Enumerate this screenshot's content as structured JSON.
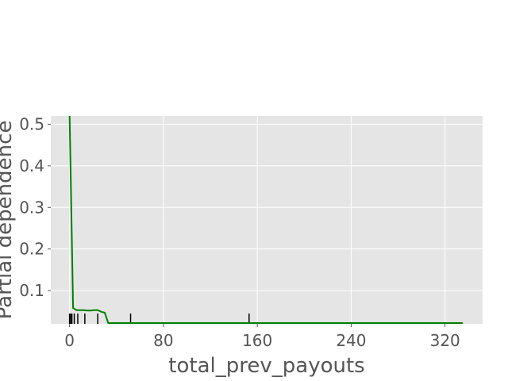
{
  "chart_data": {
    "type": "line",
    "title": "",
    "xlabel": "total_prev_payouts",
    "ylabel": "Partial dependence",
    "xlim": [
      -16,
      352
    ],
    "ylim": [
      0.02,
      0.52
    ],
    "xticks": [
      0,
      80,
      160,
      240,
      320
    ],
    "yticks": [
      0.1,
      0.2,
      0.3,
      0.4,
      0.5
    ],
    "grid": true,
    "background": "#e5e5e5",
    "line_color": "#008000",
    "series": [
      {
        "x": [
          0,
          3,
          6,
          9,
          12,
          15,
          18,
          21,
          24,
          27,
          30,
          33,
          36,
          50,
          100,
          160,
          240,
          320,
          335
        ],
        "y": [
          0.52,
          0.058,
          0.053,
          0.053,
          0.053,
          0.052,
          0.052,
          0.053,
          0.053,
          0.049,
          0.047,
          0.022,
          0.022,
          0.022,
          0.022,
          0.022,
          0.022,
          0.022,
          0.022
        ]
      }
    ],
    "rug": [
      0,
      1,
      2,
      4,
      7,
      13,
      24,
      52,
      153
    ]
  }
}
